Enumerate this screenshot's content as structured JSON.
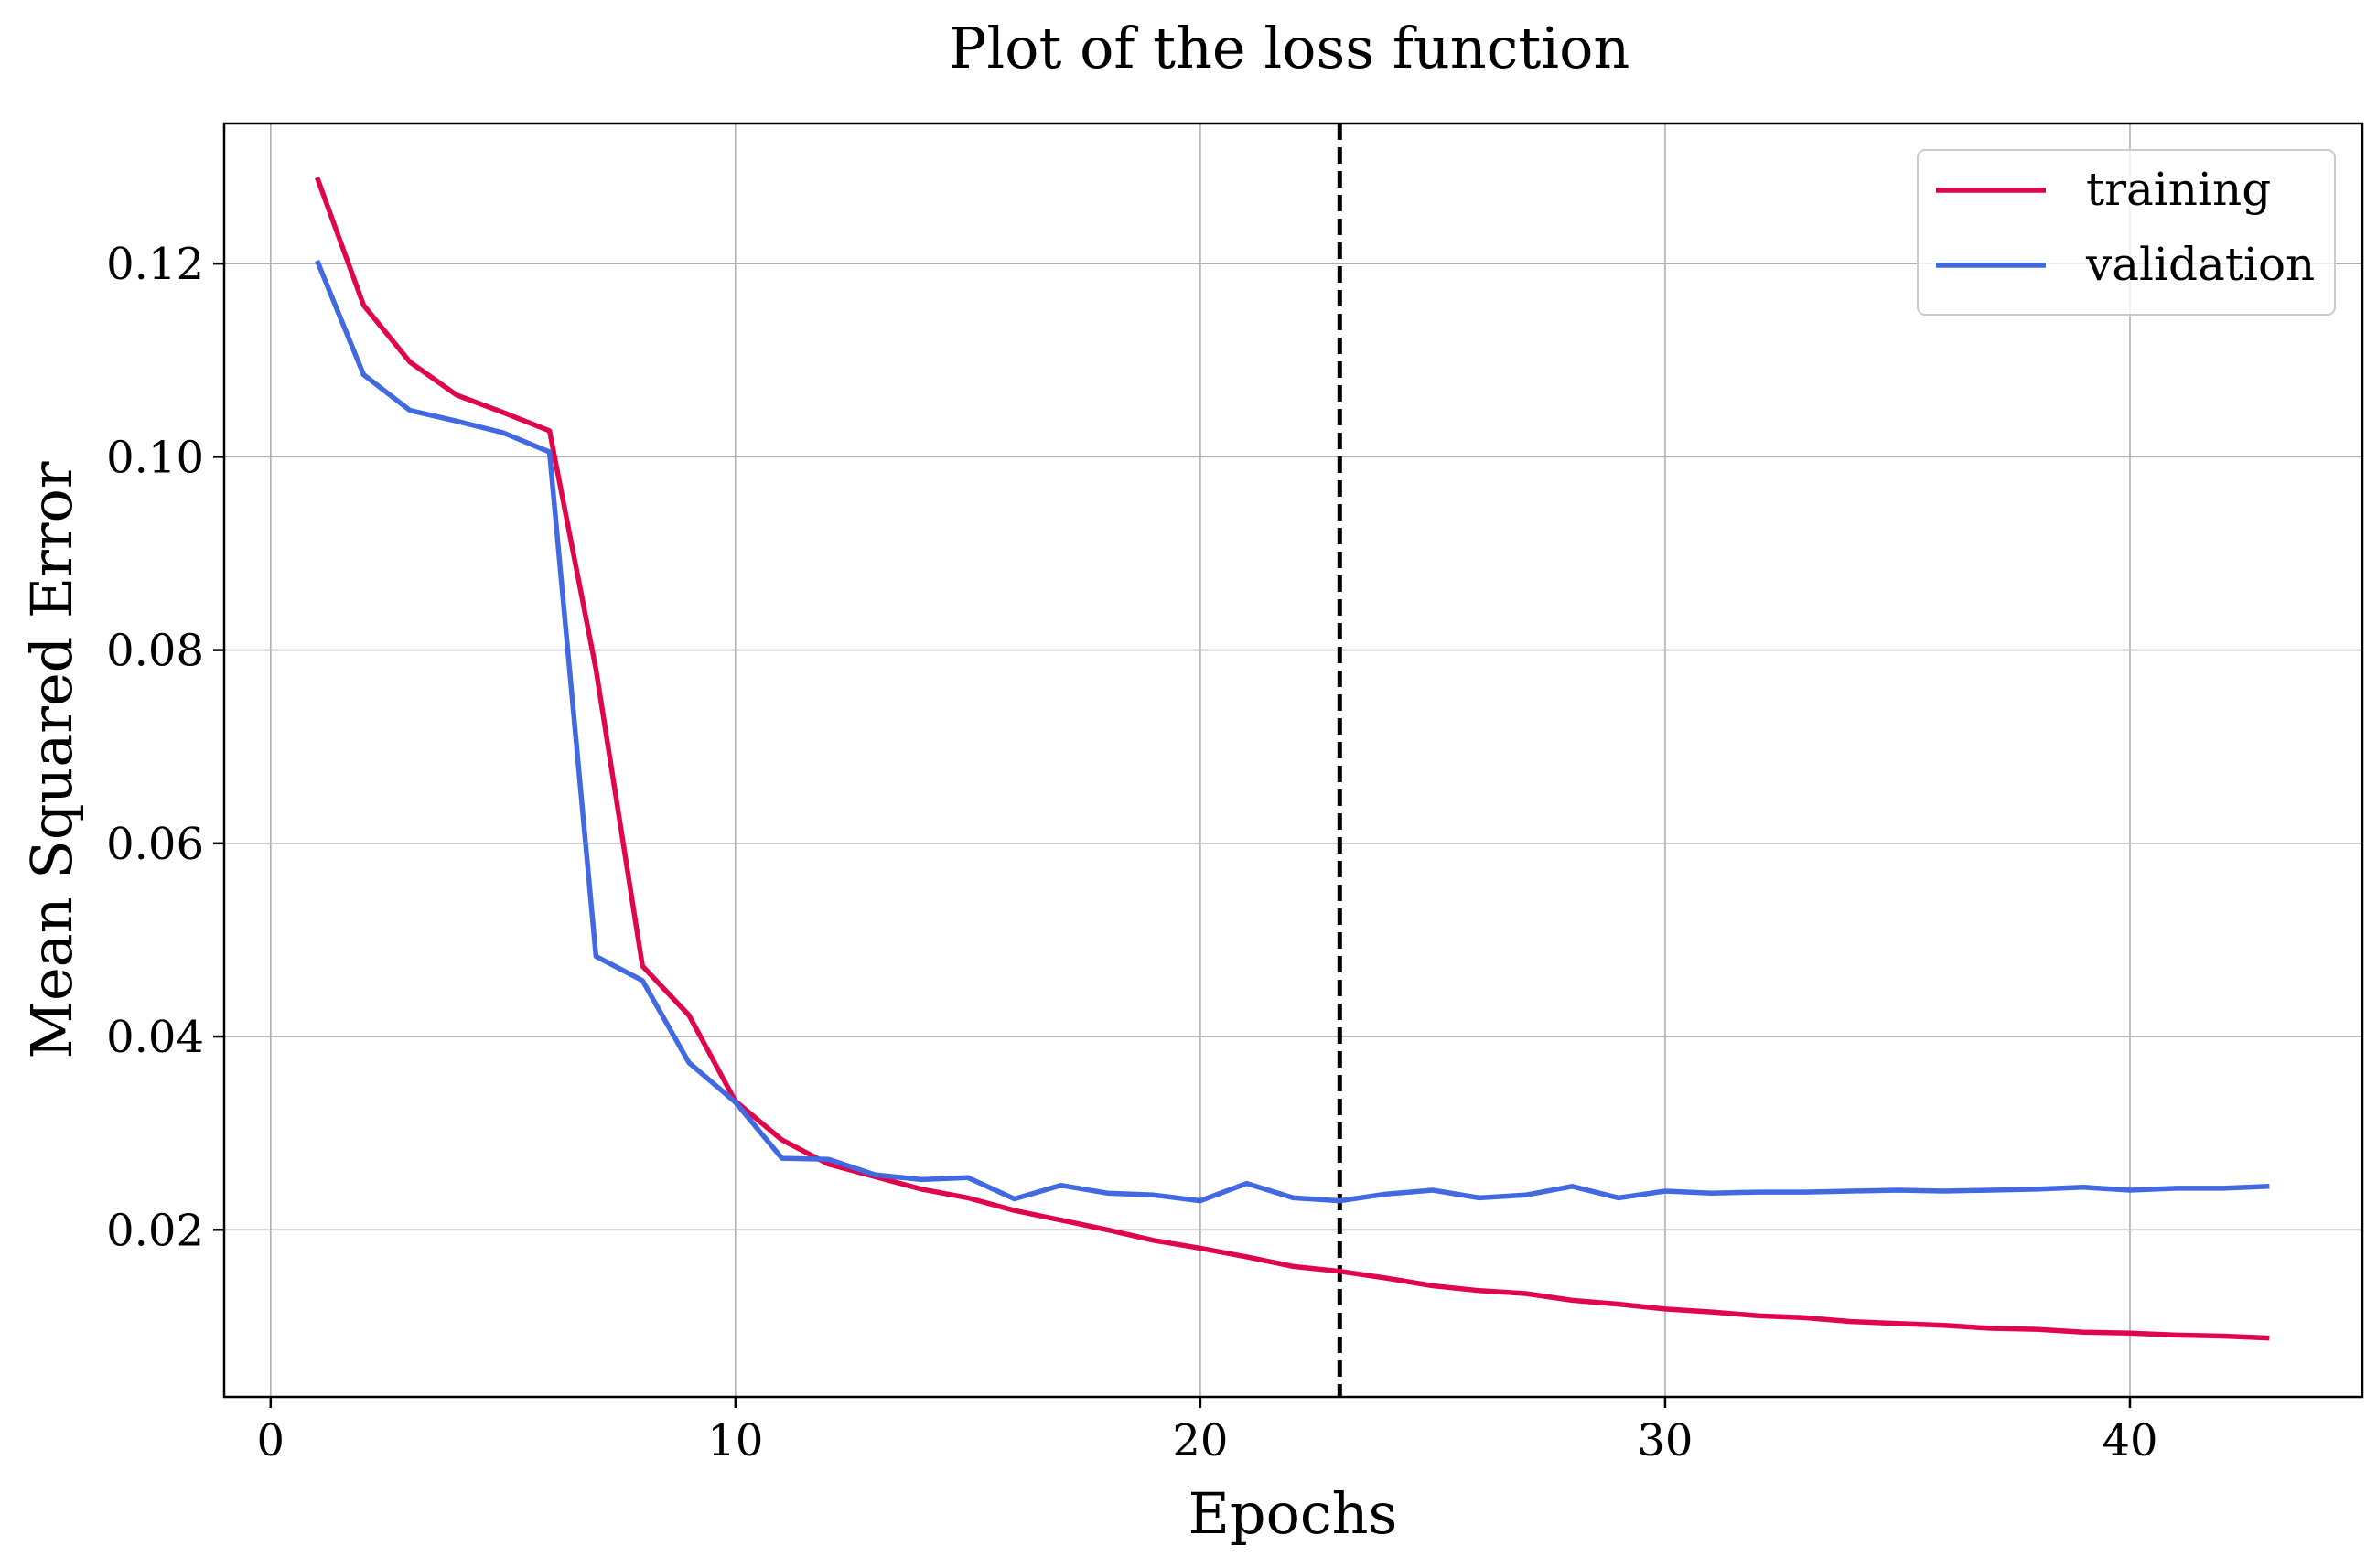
{
  "chart_data": {
    "type": "line",
    "title": "Plot of the loss function",
    "xlabel": "Epochs",
    "ylabel": "Mean Squared Error",
    "xlim": [
      -1,
      45
    ],
    "ylim": [
      0.0027,
      0.1345
    ],
    "xticks": [
      0,
      10,
      20,
      30,
      40
    ],
    "xtick_labels": [
      "0",
      "10",
      "20",
      "30",
      "40"
    ],
    "yticks": [
      0.02,
      0.04,
      0.06,
      0.08,
      0.1,
      0.12
    ],
    "ytick_labels": [
      "0.02",
      "0.04",
      "0.06",
      "0.08",
      "0.10",
      "0.12"
    ],
    "grid": true,
    "legend": "top-right",
    "vline_x": 23,
    "x": [
      1,
      2,
      3,
      4,
      5,
      6,
      7,
      8,
      9,
      10,
      11,
      12,
      13,
      14,
      15,
      16,
      17,
      18,
      19,
      20,
      21,
      22,
      23,
      24,
      25,
      26,
      27,
      28,
      29,
      30,
      31,
      32,
      33,
      34,
      35,
      36,
      37,
      38,
      39,
      40,
      41,
      42,
      43
    ],
    "series": [
      {
        "name": "training",
        "color": "#e0064b",
        "values": [
          0.1289,
          0.1157,
          0.1098,
          0.1064,
          0.1046,
          0.1027,
          0.078,
          0.0473,
          0.0422,
          0.0333,
          0.0293,
          0.0268,
          0.0255,
          0.0242,
          0.0233,
          0.022,
          0.021,
          0.02,
          0.0189,
          0.0181,
          0.0172,
          0.0162,
          0.0157,
          0.015,
          0.0142,
          0.0137,
          0.0134,
          0.0127,
          0.0123,
          0.0118,
          0.0115,
          0.0111,
          0.0109,
          0.0105,
          0.0103,
          0.0101,
          0.0098,
          0.0097,
          0.0094,
          0.0093,
          0.0091,
          0.009,
          0.0088
        ]
      },
      {
        "name": "validation",
        "color": "#4169e1",
        "values": [
          0.1203,
          0.1085,
          0.1048,
          0.1037,
          0.1025,
          0.1005,
          0.0483,
          0.0458,
          0.0373,
          0.0332,
          0.0274,
          0.0273,
          0.0257,
          0.0252,
          0.0254,
          0.0232,
          0.0246,
          0.0238,
          0.0236,
          0.023,
          0.0248,
          0.0233,
          0.023,
          0.0237,
          0.0241,
          0.0233,
          0.0236,
          0.0245,
          0.0233,
          0.024,
          0.0238,
          0.0239,
          0.0239,
          0.024,
          0.0241,
          0.024,
          0.0241,
          0.0242,
          0.0244,
          0.0241,
          0.0243,
          0.0243,
          0.0245
        ]
      }
    ]
  }
}
